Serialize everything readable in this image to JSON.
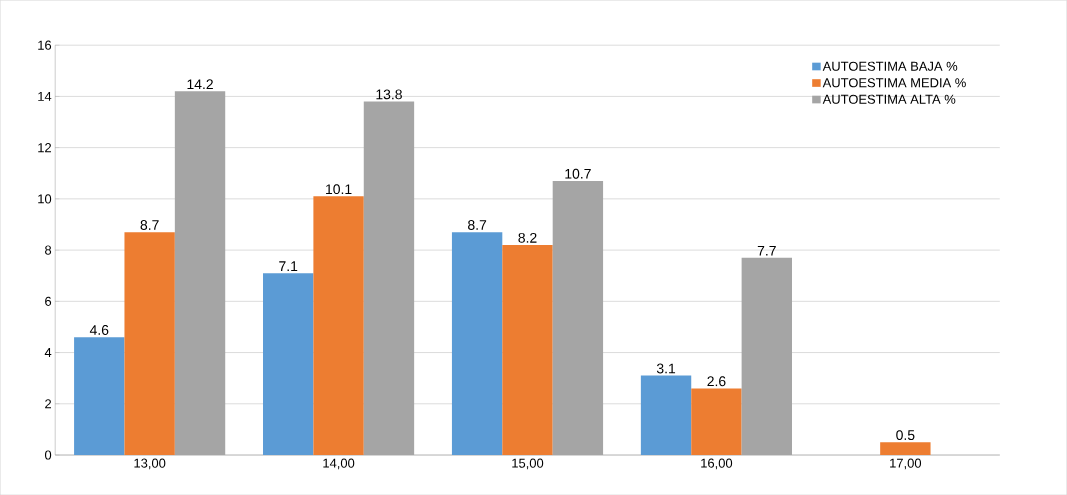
{
  "chart_data": {
    "type": "bar",
    "categories": [
      "13,00",
      "14,00",
      "15,00",
      "16,00",
      "17,00"
    ],
    "series": [
      {
        "name": "AUTOESTIMA BAJA %",
        "color": "#5b9bd5",
        "values": [
          4.6,
          7.1,
          8.7,
          3.1,
          null
        ]
      },
      {
        "name": "AUTOESTIMA MEDIA %",
        "color": "#ed7d31",
        "values": [
          8.7,
          10.1,
          8.2,
          2.6,
          0.5
        ]
      },
      {
        "name": "AUTOESTIMA ALTA %",
        "color": "#a5a5a5",
        "values": [
          14.2,
          13.8,
          10.7,
          7.7,
          null
        ]
      }
    ],
    "ylim": [
      0,
      16
    ],
    "yticks": [
      0,
      2,
      4,
      6,
      8,
      10,
      12,
      14,
      16
    ],
    "grid": "y",
    "legend": "top right",
    "data_labels": true
  }
}
